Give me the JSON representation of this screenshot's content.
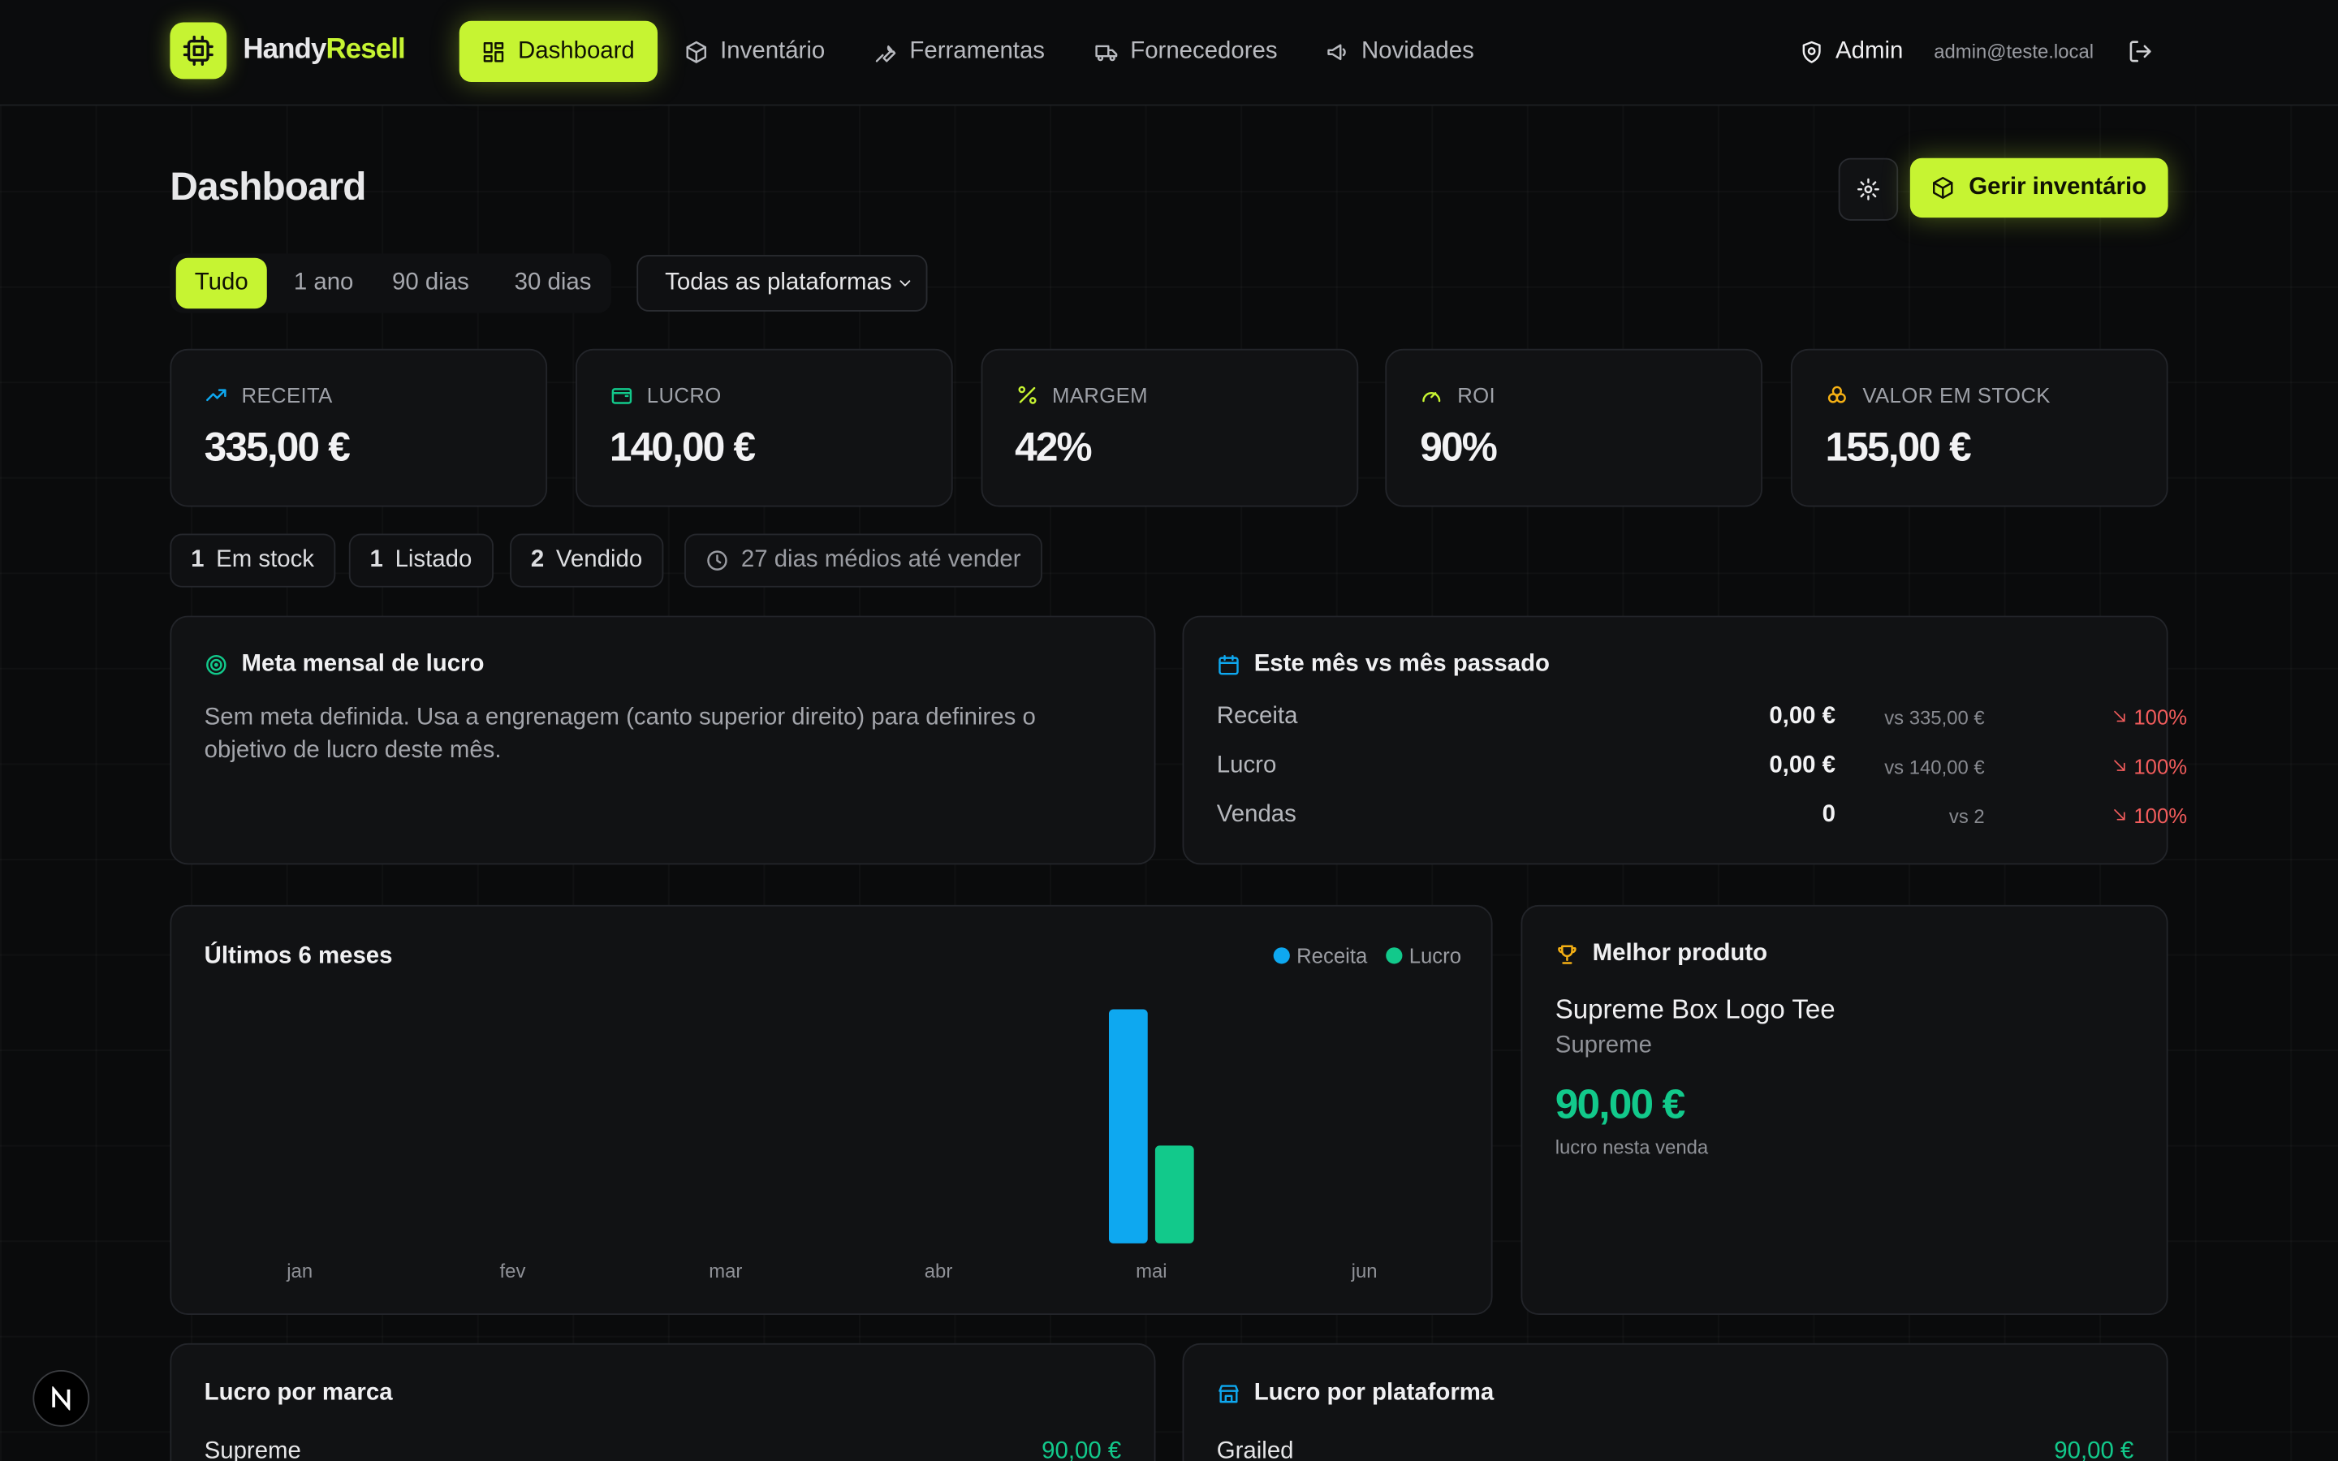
{
  "nav": {
    "brand_a": "Handy",
    "brand_b": "Resell",
    "items": [
      "Dashboard",
      "Inventário",
      "Ferramentas",
      "Fornecedores",
      "Novidades"
    ],
    "user": "Admin",
    "email": "admin@teste.local"
  },
  "header": {
    "title": "Dashboard",
    "action": "Gerir inventário"
  },
  "filters": {
    "periods": [
      "Tudo",
      "1 ano",
      "90 dias",
      "30 dias"
    ],
    "platform": "Todas as plataformas"
  },
  "stats": [
    {
      "label": "RECEITA",
      "value": "335,00 €"
    },
    {
      "label": "LUCRO",
      "value": "140,00 €"
    },
    {
      "label": "MARGEM",
      "value": "42%"
    },
    {
      "label": "ROI",
      "value": "90%"
    },
    {
      "label": "VALOR EM STOCK",
      "value": "155,00 €"
    }
  ],
  "badges": [
    {
      "count": 1,
      "label": "Em stock"
    },
    {
      "count": 1,
      "label": "Listado"
    },
    {
      "count": 2,
      "label": "Vendido"
    }
  ],
  "avg_days": "27 dias médios até vender",
  "goal": {
    "title": "Meta mensal de lucro",
    "text": "Sem meta definida. Usa a engrenagem (canto superior direito) para definires o objetivo de lucro deste mês."
  },
  "comparison": {
    "title": "Este mês vs mês passado",
    "rows": [
      {
        "label": "Receita",
        "value": "0,00 €",
        "previous": "vs 335,00 €",
        "change": "100%"
      },
      {
        "label": "Lucro",
        "value": "0,00 €",
        "previous": "vs 140,00 €",
        "change": "100%"
      },
      {
        "label": "Vendas",
        "value": "0",
        "previous": "vs 2",
        "change": "100%"
      }
    ]
  },
  "chart_data": {
    "type": "bar",
    "title": "Últimos 6 meses",
    "categories": [
      "jan",
      "fev",
      "mar",
      "abr",
      "mai",
      "jun"
    ],
    "series": [
      {
        "name": "Receita",
        "color": "#0ea8f0",
        "values": [
          0,
          0,
          0,
          0,
          335,
          0
        ]
      },
      {
        "name": "Lucro",
        "color": "#12c98b",
        "values": [
          0,
          0,
          0,
          0,
          140,
          0
        ]
      }
    ]
  },
  "best": {
    "title": "Melhor produto",
    "product": "Supreme Box Logo Tee",
    "brand": "Supreme",
    "profit": "90,00 €",
    "note": "lucro nesta venda"
  },
  "by_brand": {
    "title": "Lucro por marca",
    "rows": [
      {
        "label": "Supreme",
        "value": "90,00 €"
      }
    ]
  },
  "by_platform": {
    "title": "Lucro por plataforma",
    "rows": [
      {
        "label": "Grailed",
        "value": "90,00 €"
      }
    ]
  }
}
